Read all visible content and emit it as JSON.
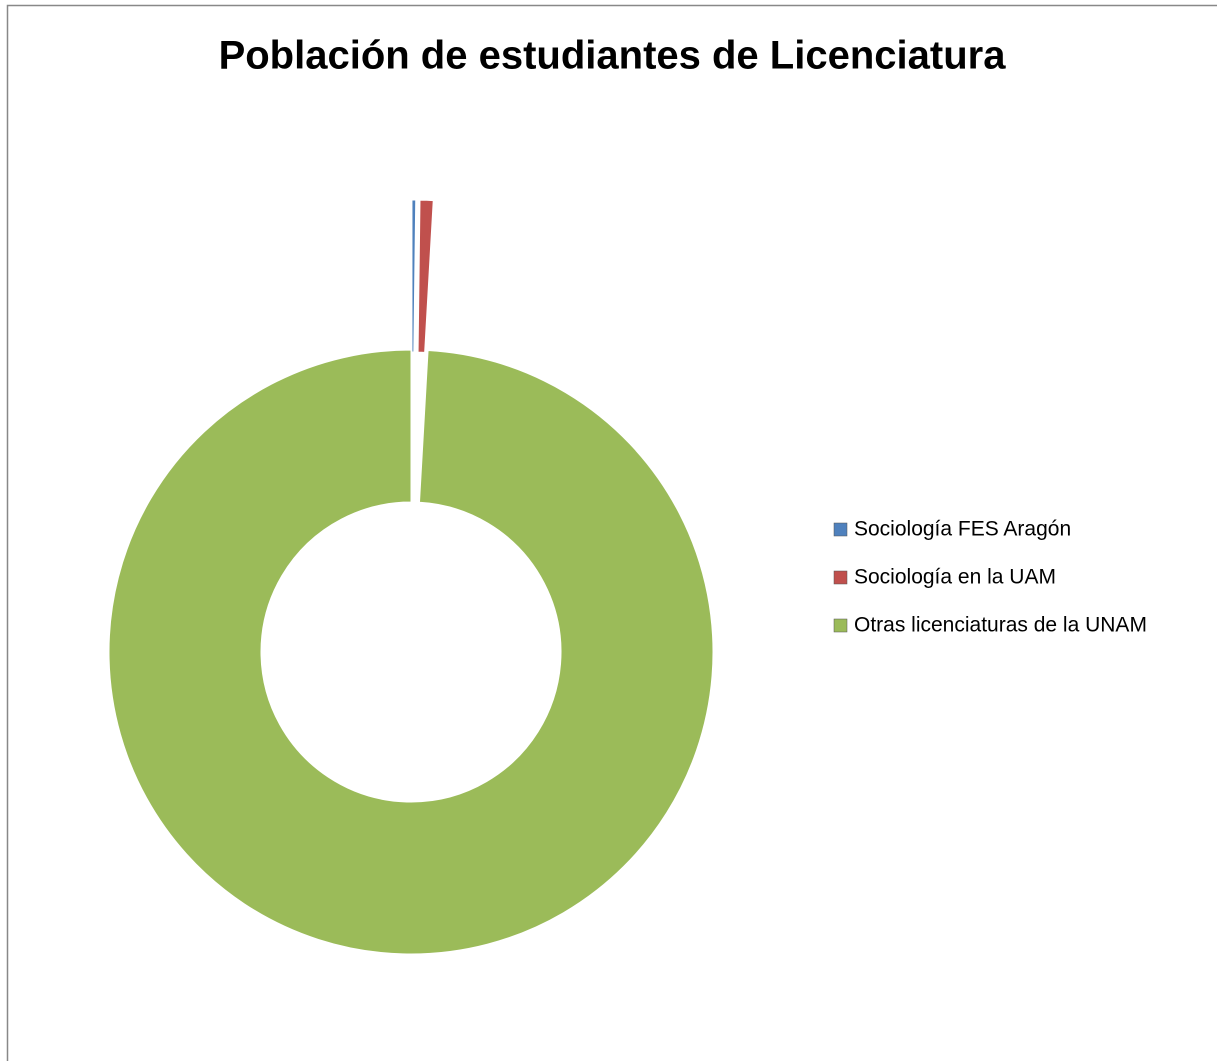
{
  "chart_data": {
    "type": "donut",
    "title": "Población de estudiantes de Licenciatura",
    "categories": [
      "Sociología FES Aragón",
      "Sociología en la UAM",
      "Otras licenciaturas de la UNAM"
    ],
    "values": [
      0.2,
      0.7,
      99.1
    ],
    "colors": [
      "#4f81bd",
      "#c0504d",
      "#9bbb59"
    ],
    "exploded": [
      true,
      true,
      false
    ],
    "legend": "right"
  }
}
